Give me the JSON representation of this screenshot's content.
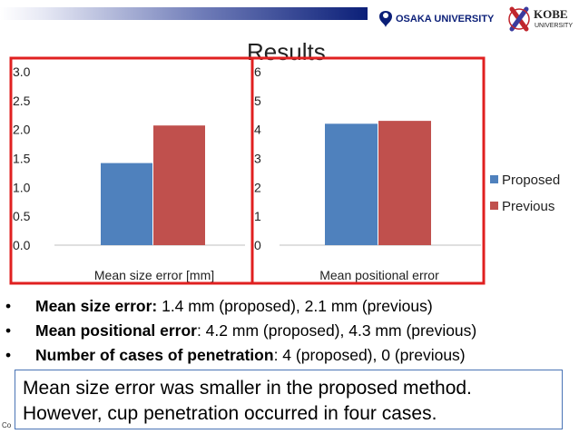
{
  "slide": {
    "title": "Results",
    "bullets": [
      {
        "bold": "Mean size error:",
        "rest": " 1.4 mm (proposed), 2.1 mm (previous)"
      },
      {
        "bold": "Mean positional error",
        "rest": ": 4.2 mm (proposed), 4.3 mm (previous)"
      },
      {
        "bold": "Number of cases of penetration",
        "rest": ": 4 (proposed), 0 (previous)"
      }
    ],
    "callout_line1": "Mean size error was smaller in the proposed method.",
    "callout_line2": "However, cup penetration occurred in four cases.",
    "copyright": "Co",
    "logos": {
      "osaka": "OSAKA UNIVERSITY",
      "kobe_main": "KOBE",
      "kobe_sub": "UNIVERSITY"
    }
  },
  "colors": {
    "proposed": "#4f81bd",
    "previous": "#c0504d",
    "highlight": "#e02020",
    "accent": "#0b1f78"
  },
  "chart_data": [
    {
      "type": "bar",
      "categories": [
        "Mean size error [mm]"
      ],
      "series": [
        {
          "name": "Proposed",
          "values": [
            1.42
          ]
        },
        {
          "name": "Previous",
          "values": [
            2.07
          ]
        }
      ],
      "ylim": [
        0,
        3
      ],
      "yticks": [
        "0.0",
        "0.5",
        "1.0",
        "1.5",
        "2.0",
        "2.5",
        "3.0"
      ],
      "xlabel": "",
      "ylabel": "",
      "grid": false
    },
    {
      "type": "bar",
      "categories": [
        "Mean positional error"
      ],
      "series": [
        {
          "name": "Proposed",
          "values": [
            4.2
          ]
        },
        {
          "name": "Previous",
          "values": [
            4.3
          ]
        }
      ],
      "ylim": [
        0,
        6
      ],
      "yticks": [
        "0",
        "1",
        "2",
        "3",
        "4",
        "5",
        "6"
      ],
      "xlabel": "",
      "ylabel": "",
      "grid": false
    }
  ],
  "legend": {
    "position": "right",
    "items": [
      "Proposed",
      "Previous"
    ]
  }
}
